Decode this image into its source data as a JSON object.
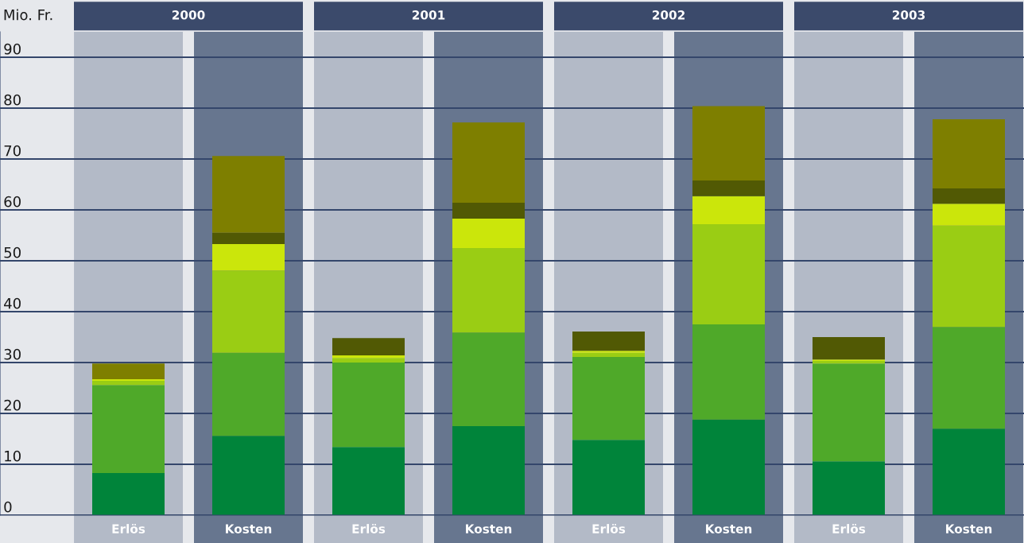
{
  "chart_data": {
    "type": "bar",
    "stacked": true,
    "ylabel": "Mio. Fr.",
    "categories": [
      "Erlös",
      "Kosten",
      "Erlös",
      "Kosten",
      "Erlös",
      "Kosten",
      "Erlös",
      "Kosten"
    ],
    "series": [
      {
        "color": "#00843a",
        "values": [
          8.3,
          15.6,
          13.4,
          17.5,
          14.8,
          18.8,
          10.6,
          17.0
        ]
      },
      {
        "color": "#4fa929",
        "values": [
          17.3,
          16.3,
          16.6,
          18.4,
          16.3,
          18.7,
          19.2,
          20.0
        ]
      },
      {
        "color": "#9acd14",
        "values": [
          0.8,
          16.2,
          0.9,
          16.6,
          0.8,
          19.7,
          0.5,
          19.9
        ]
      },
      {
        "color": "#cbe60b",
        "values": [
          0.3,
          5.2,
          0.5,
          5.8,
          0.4,
          5.5,
          0.3,
          4.3
        ]
      },
      {
        "color": "#515904",
        "values": [
          0,
          2.2,
          3.4,
          3.1,
          3.8,
          3.1,
          4.4,
          3.0
        ]
      },
      {
        "color": "#7e7f00",
        "values": [
          3.1,
          15.1,
          0,
          15.8,
          0,
          14.6,
          0,
          13.6
        ]
      }
    ],
    "ylim": [
      0,
      95
    ],
    "yticks": [
      0,
      10,
      20,
      30,
      40,
      50,
      60,
      70,
      80,
      90
    ],
    "grid": "y",
    "annotations": [
      "2000",
      "2001",
      "2002",
      "2003"
    ]
  }
}
